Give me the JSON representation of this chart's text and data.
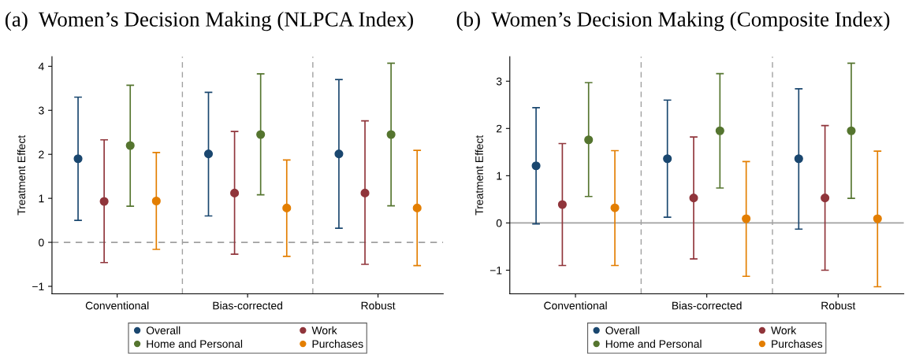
{
  "chart_data": [
    {
      "type": "scatter",
      "title": "(a)  Women’s Decision Making (NLPCA Index)",
      "ylabel": "Treatment Effect",
      "categories": [
        "Conventional",
        "Bias-corrected",
        "Robust"
      ],
      "ylim": [
        -1.17,
        4.22
      ],
      "yticks": [
        {
          "value": -1,
          "label": "−1"
        },
        0,
        1,
        2,
        3,
        4
      ],
      "marker": "circle",
      "legend": "bottom",
      "grid": false,
      "ref_lines": [
        {
          "axis": "y",
          "value": 0,
          "color": "#a0a0a0",
          "line_style": "dashed"
        }
      ],
      "series": [
        {
          "name": "Overall",
          "color": "#1a476f",
          "values": [
            1.9,
            2.01,
            2.01
          ],
          "errors": [
            [
              0.5,
              3.3
            ],
            [
              0.6,
              3.41
            ],
            [
              0.32,
              3.7
            ]
          ]
        },
        {
          "name": "Work",
          "color": "#90353b",
          "values": [
            0.93,
            1.12,
            1.12
          ],
          "errors": [
            [
              -0.46,
              2.33
            ],
            [
              -0.27,
              2.52
            ],
            [
              -0.5,
              2.76
            ]
          ]
        },
        {
          "name": "Home and Personal",
          "color": "#55752f",
          "values": [
            2.2,
            2.45,
            2.45
          ],
          "errors": [
            [
              0.82,
              3.57
            ],
            [
              1.08,
              3.83
            ],
            [
              0.83,
              4.07
            ]
          ]
        },
        {
          "name": "Purchases",
          "color": "#e37e00",
          "values": [
            0.94,
            0.78,
            0.78
          ],
          "errors": [
            [
              -0.16,
              2.04
            ],
            [
              -0.32,
              1.87
            ],
            [
              -0.53,
              2.09
            ]
          ]
        }
      ]
    },
    {
      "type": "scatter",
      "title": "(b)  Women’s Decision Making (Composite Index)",
      "ylabel": "Treatment Effect",
      "categories": [
        "Conventional",
        "Bias-corrected",
        "Robust"
      ],
      "ylim": [
        -1.5,
        3.52
      ],
      "yticks": [
        {
          "value": -1,
          "label": "−1"
        },
        0,
        1,
        2,
        3
      ],
      "marker": "circle",
      "legend": "bottom",
      "grid": false,
      "ref_lines": [
        {
          "axis": "y",
          "value": 0,
          "color": "#a0a0a0",
          "line_style": "solid"
        }
      ],
      "series": [
        {
          "name": "Overall",
          "color": "#1a476f",
          "values": [
            1.21,
            1.36,
            1.36
          ],
          "errors": [
            [
              -0.02,
              2.44
            ],
            [
              0.12,
              2.6
            ],
            [
              -0.13,
              2.84
            ]
          ]
        },
        {
          "name": "Work",
          "color": "#90353b",
          "values": [
            0.39,
            0.53,
            0.53
          ],
          "errors": [
            [
              -0.9,
              1.68
            ],
            [
              -0.76,
              1.82
            ],
            [
              -1.0,
              2.06
            ]
          ]
        },
        {
          "name": "Home and Personal",
          "color": "#55752f",
          "values": [
            1.76,
            1.95,
            1.95
          ],
          "errors": [
            [
              0.56,
              2.97
            ],
            [
              0.74,
              3.16
            ],
            [
              0.52,
              3.38
            ]
          ]
        },
        {
          "name": "Purchases",
          "color": "#e37e00",
          "values": [
            0.32,
            0.09,
            0.09
          ],
          "errors": [
            [
              -0.9,
              1.53
            ],
            [
              -1.13,
              1.3
            ],
            [
              -1.35,
              1.52
            ]
          ]
        }
      ]
    }
  ]
}
